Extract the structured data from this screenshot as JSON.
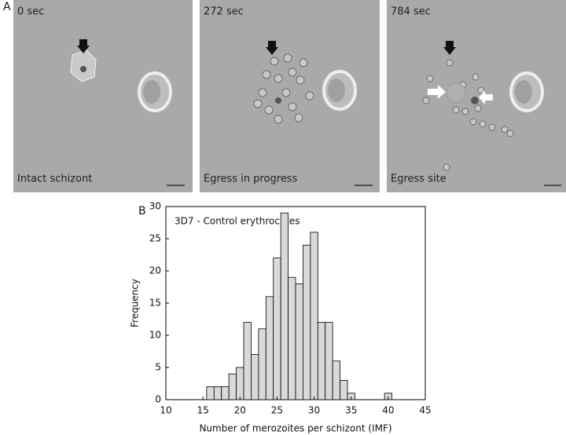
{
  "panel_a": {
    "label": "A",
    "frames": [
      {
        "time": "0 sec",
        "caption": "Intact schizont"
      },
      {
        "time": "272 sec",
        "caption": "Egress in progress"
      },
      {
        "time": "784 sec",
        "caption": "Egress site"
      }
    ]
  },
  "chart_data": {
    "type": "histogram",
    "panel_label": "B",
    "title": "3D7 - Control erythrocytes",
    "x_label": "Number of merozoites per schizont (IMF)",
    "y_label": "Frequency",
    "bins": [
      15.5,
      16.5,
      17.5,
      18.5,
      19.5,
      20.5,
      21.5,
      22.5,
      23.5,
      24.5,
      25.5,
      26.5,
      27.5,
      28.5,
      29.5,
      30.5,
      31.5,
      32.5,
      33.5,
      34.5,
      35.5,
      36.5,
      37.5,
      38.5,
      39.5,
      40.5
    ],
    "values": [
      2,
      2,
      2,
      4,
      5,
      12,
      7,
      11,
      16,
      22,
      29,
      19,
      18,
      24,
      26,
      12,
      12,
      6,
      3,
      1,
      0,
      0,
      0,
      0,
      1
    ],
    "color": "#d9d9d9",
    "xlim": [
      10,
      45
    ],
    "xticks": [
      10,
      15,
      20,
      25,
      30,
      35,
      40,
      45
    ],
    "ylim": [
      0,
      30
    ],
    "yticks": [
      0,
      5,
      10,
      15,
      20,
      25,
      30
    ]
  }
}
